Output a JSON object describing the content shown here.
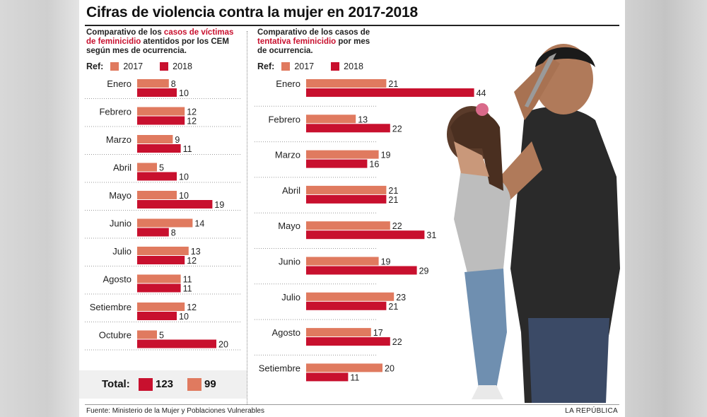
{
  "title": "Cifras de violencia contra la mujer en 2017-2018",
  "left": {
    "subtitle_parts": [
      {
        "text": "Comparativo de los ",
        "hl": false
      },
      {
        "text": "casos de víctimas de feminicidio",
        "hl": true
      },
      {
        "text": " atentidos por los CEM según mes de ocurrencia.",
        "hl": false
      }
    ],
    "legend": {
      "ref": "Ref:",
      "a": "2017",
      "b": "2018"
    }
  },
  "right": {
    "subtitle_parts": [
      {
        "text": "Comparativo de los casos de ",
        "hl": false
      },
      {
        "text": "tentativa feminicidio",
        "hl": true
      },
      {
        "text": " por mes de ocurrencia.",
        "hl": false
      }
    ],
    "legend": {
      "ref": "Ref:",
      "a": "2017",
      "b": "2018"
    }
  },
  "totals": {
    "label": "Total:",
    "value_2018": "123",
    "value_2017": "99"
  },
  "source": "Fuente: Ministerio de la Mujer y Poblaciones Vulnerables",
  "brand": "LA REPÚBLICA",
  "colors": {
    "y2017": "#e07a5f",
    "y2018": "#c8102e"
  },
  "chart_data": [
    {
      "type": "bar",
      "orientation": "horizontal",
      "title": "",
      "categories": [
        "Enero",
        "Febrero",
        "Marzo",
        "Abril",
        "Mayo",
        "Junio",
        "Julio",
        "Agosto",
        "Setiembre",
        "Octubre"
      ],
      "series": [
        {
          "name": "2017",
          "values": [
            8,
            12,
            9,
            5,
            10,
            14,
            13,
            11,
            12,
            5
          ]
        },
        {
          "name": "2018",
          "values": [
            10,
            12,
            11,
            10,
            19,
            8,
            12,
            11,
            10,
            20
          ]
        }
      ],
      "legend": "top-left"
    },
    {
      "type": "bar",
      "orientation": "horizontal",
      "title": "",
      "categories": [
        "Enero",
        "Febrero",
        "Marzo",
        "Abril",
        "Mayo",
        "Junio",
        "Julio",
        "Agosto",
        "Setiembre"
      ],
      "series": [
        {
          "name": "2017",
          "values": [
            21,
            13,
            19,
            21,
            22,
            19,
            23,
            17,
            20
          ]
        },
        {
          "name": "2018",
          "values": [
            44,
            22,
            16,
            21,
            31,
            29,
            21,
            22,
            11
          ]
        }
      ],
      "legend": "top-left"
    }
  ]
}
